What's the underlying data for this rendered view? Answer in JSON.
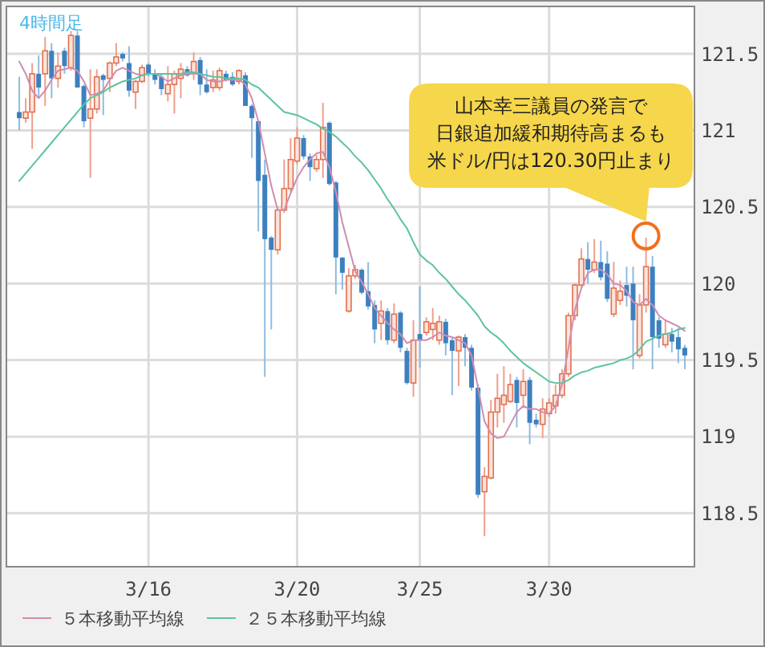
{
  "chart_data": {
    "type": "candlestick",
    "annotations": [
      "4時間足",
      "山本幸三議員の発言で",
      "日銀追加緩和期待高まるも",
      "米ドル/円は120.30円止まり"
    ],
    "categories": [
      null,
      null,
      null,
      null,
      null,
      null,
      null,
      null,
      null,
      null,
      null,
      null,
      null,
      null,
      null,
      null,
      null,
      null,
      null,
      null,
      "3/16",
      null,
      null,
      null,
      null,
      null,
      null,
      null,
      null,
      null,
      null,
      null,
      null,
      null,
      null,
      null,
      null,
      null,
      null,
      null,
      null,
      null,
      null,
      "3/20",
      null,
      null,
      null,
      null,
      null,
      null,
      null,
      null,
      null,
      null,
      null,
      null,
      null,
      null,
      null,
      null,
      null,
      null,
      "3/25",
      null,
      null,
      null,
      null,
      null,
      null,
      null,
      null,
      null,
      null,
      null,
      null,
      null,
      null,
      null,
      null,
      null,
      null,
      null,
      "3/30",
      null,
      null,
      null,
      null,
      null,
      null,
      null,
      null,
      null,
      null,
      null,
      null,
      null,
      null,
      null,
      null,
      null,
      null,
      null,
      null,
      null
    ],
    "ohlc": [
      [
        121.12,
        121.35,
        121.0,
        121.08
      ],
      [
        121.08,
        121.21,
        121.05,
        121.12
      ],
      [
        121.12,
        121.44,
        120.88,
        121.37
      ],
      [
        121.37,
        121.49,
        121.21,
        121.28
      ],
      [
        121.37,
        121.61,
        121.16,
        121.52
      ],
      [
        121.52,
        121.57,
        121.21,
        121.34
      ],
      [
        121.34,
        121.51,
        121.28,
        121.42
      ],
      [
        121.52,
        121.54,
        121.37,
        121.42
      ],
      [
        121.41,
        121.65,
        121.39,
        121.62
      ],
      [
        121.62,
        121.65,
        121.28,
        121.28
      ],
      [
        121.29,
        121.3,
        121.02,
        121.06
      ],
      [
        121.08,
        121.4,
        120.69,
        121.14
      ],
      [
        121.14,
        121.4,
        121.11,
        121.35
      ],
      [
        121.36,
        121.37,
        121.1,
        121.33
      ],
      [
        121.34,
        121.45,
        121.25,
        121.44
      ],
      [
        121.44,
        121.57,
        121.42,
        121.48
      ],
      [
        121.5,
        121.51,
        121.45,
        121.47
      ],
      [
        121.44,
        121.55,
        121.22,
        121.26
      ],
      [
        121.25,
        121.33,
        121.14,
        121.32
      ],
      [
        121.32,
        121.43,
        121.31,
        121.41
      ],
      [
        121.43,
        121.44,
        121.35,
        121.37
      ],
      [
        121.37,
        121.4,
        121.3,
        121.33
      ],
      [
        121.35,
        121.37,
        121.23,
        121.27
      ],
      [
        121.24,
        121.42,
        121.19,
        121.3
      ],
      [
        121.3,
        121.39,
        121.11,
        121.37
      ],
      [
        121.34,
        121.44,
        121.21,
        121.4
      ],
      [
        121.4,
        121.42,
        121.35,
        121.36
      ],
      [
        121.37,
        121.51,
        121.33,
        121.45
      ],
      [
        121.46,
        121.48,
        121.23,
        121.3
      ],
      [
        121.3,
        121.4,
        121.24,
        121.25
      ],
      [
        121.28,
        121.39,
        121.25,
        121.33
      ],
      [
        121.28,
        121.41,
        121.26,
        121.39
      ],
      [
        121.37,
        121.39,
        121.32,
        121.33
      ],
      [
        121.35,
        121.38,
        121.29,
        121.3
      ],
      [
        121.32,
        121.4,
        121.3,
        121.39
      ],
      [
        121.36,
        121.38,
        121.16,
        121.16
      ],
      [
        121.16,
        121.17,
        120.82,
        121.08
      ],
      [
        121.06,
        121.07,
        120.34,
        120.67
      ],
      [
        120.71,
        120.81,
        119.39,
        120.29
      ],
      [
        120.3,
        120.31,
        119.7,
        120.22
      ],
      [
        120.22,
        120.5,
        120.19,
        120.48
      ],
      [
        120.48,
        120.81,
        120.46,
        120.62
      ],
      [
        120.62,
        120.95,
        120.6,
        120.81
      ],
      [
        120.8,
        121.02,
        120.78,
        120.95
      ],
      [
        120.95,
        120.97,
        120.81,
        120.83
      ],
      [
        120.83,
        120.85,
        120.67,
        120.76
      ],
      [
        120.75,
        120.84,
        120.73,
        120.81
      ],
      [
        120.81,
        121.18,
        120.69,
        121.02
      ],
      [
        121.05,
        121.06,
        120.64,
        120.65
      ],
      [
        120.66,
        120.67,
        119.93,
        120.17
      ],
      [
        120.17,
        120.17,
        119.96,
        120.07
      ],
      [
        119.82,
        120.1,
        119.81,
        120.05
      ],
      [
        120.05,
        120.12,
        120.03,
        120.09
      ],
      [
        120.09,
        120.1,
        119.93,
        119.94
      ],
      [
        119.95,
        120.14,
        119.83,
        119.85
      ],
      [
        119.86,
        119.89,
        119.61,
        119.7
      ],
      [
        119.74,
        119.89,
        119.63,
        119.82
      ],
      [
        119.82,
        119.84,
        119.6,
        119.63
      ],
      [
        119.63,
        119.87,
        119.61,
        119.8
      ],
      [
        119.81,
        119.82,
        119.55,
        119.58
      ],
      [
        119.56,
        119.58,
        119.34,
        119.35
      ],
      [
        119.35,
        119.76,
        119.26,
        119.63
      ],
      [
        119.67,
        119.98,
        119.45,
        119.63
      ],
      [
        119.68,
        119.78,
        119.66,
        119.75
      ],
      [
        119.7,
        119.84,
        119.63,
        119.74
      ],
      [
        119.63,
        119.79,
        119.6,
        119.75
      ],
      [
        119.75,
        119.77,
        119.53,
        119.61
      ],
      [
        119.63,
        119.65,
        119.27,
        119.56
      ],
      [
        119.56,
        119.66,
        119.33,
        119.65
      ],
      [
        119.65,
        119.67,
        119.46,
        119.58
      ],
      [
        119.58,
        119.6,
        119.3,
        119.32
      ],
      [
        119.32,
        119.34,
        118.6,
        118.62
      ],
      [
        118.64,
        118.8,
        118.35,
        118.74
      ],
      [
        118.73,
        119.24,
        118.72,
        119.16
      ],
      [
        119.16,
        119.41,
        119.06,
        119.25
      ],
      [
        119.21,
        119.46,
        119.09,
        119.27
      ],
      [
        119.23,
        119.41,
        119.22,
        119.34
      ],
      [
        119.37,
        119.39,
        119.06,
        119.22
      ],
      [
        119.27,
        119.44,
        119.2,
        119.36
      ],
      [
        119.37,
        119.39,
        118.95,
        119.09
      ],
      [
        119.11,
        119.15,
        119.06,
        119.08
      ],
      [
        119.08,
        119.25,
        118.99,
        119.18
      ],
      [
        119.15,
        119.25,
        119.13,
        119.22
      ],
      [
        119.2,
        119.34,
        119.15,
        119.27
      ],
      [
        119.27,
        119.44,
        119.25,
        119.41
      ],
      [
        119.41,
        119.81,
        119.39,
        119.79
      ],
      [
        119.79,
        120.0,
        119.76,
        119.99
      ],
      [
        119.99,
        120.23,
        119.97,
        120.16
      ],
      [
        120.16,
        120.27,
        120.0,
        120.09
      ],
      [
        120.09,
        120.29,
        120.07,
        120.14
      ],
      [
        120.14,
        120.28,
        120.02,
        120.04
      ],
      [
        120.13,
        120.21,
        119.88,
        119.9
      ],
      [
        119.8,
        120.14,
        119.78,
        119.97
      ],
      [
        119.89,
        120.02,
        119.86,
        119.95
      ],
      [
        119.99,
        120.11,
        119.85,
        119.92
      ],
      [
        120.0,
        120.11,
        119.44,
        119.76
      ],
      [
        119.53,
        119.93,
        119.51,
        119.86
      ],
      [
        119.86,
        120.3,
        119.81,
        120.11
      ],
      [
        120.11,
        120.18,
        119.44,
        119.65
      ],
      [
        119.76,
        119.78,
        119.58,
        119.64
      ],
      [
        119.6,
        119.76,
        119.58,
        119.67
      ],
      [
        119.67,
        119.71,
        119.55,
        119.62
      ],
      [
        119.65,
        119.71,
        119.48,
        119.57
      ],
      [
        119.58,
        119.6,
        119.44,
        119.53
      ]
    ],
    "series": [
      {
        "type": "line",
        "name": "５本移動平均線",
        "color": "#d08cb0",
        "values": [
          121.45,
          121.37,
          121.26,
          121.21,
          121.26,
          121.33,
          121.39,
          121.4,
          121.41,
          121.39,
          121.32,
          121.23,
          121.24,
          121.26,
          121.33,
          121.39,
          121.41,
          121.39,
          121.37,
          121.36,
          121.37,
          121.37,
          121.35,
          121.32,
          121.34,
          121.36,
          121.37,
          121.37,
          121.37,
          121.33,
          121.32,
          121.32,
          121.33,
          121.33,
          121.33,
          121.3,
          121.21,
          121.06,
          120.85,
          120.64,
          120.48,
          120.48,
          120.59,
          120.69,
          120.76,
          120.81,
          120.85,
          120.86,
          120.76,
          120.6,
          120.4,
          120.24,
          120.08,
          120.01,
          119.93,
          119.84,
          119.79,
          119.74,
          119.7,
          119.67,
          119.61,
          119.63,
          119.63,
          119.63,
          119.65,
          119.68,
          119.66,
          119.65,
          119.63,
          119.61,
          119.53,
          119.32,
          119.1,
          119.02,
          118.99,
          119.0,
          119.08,
          119.16,
          119.2,
          119.18,
          119.18,
          119.16,
          119.15,
          119.2,
          119.34,
          119.58,
          119.83,
          119.97,
          120.07,
          120.09,
          120.09,
          120.06,
          120.0,
          119.99,
          119.95,
          119.88,
          119.86,
          119.9,
          119.86,
          119.79,
          119.76,
          119.74,
          119.72,
          119.69
        ]
      },
      {
        "type": "line",
        "name": "２５本移動平均線",
        "color": "#5cc49a",
        "values": [
          120.67,
          120.72,
          120.77,
          120.82,
          120.87,
          120.92,
          120.97,
          121.02,
          121.07,
          121.12,
          121.17,
          121.21,
          121.23,
          121.25,
          121.28,
          121.3,
          121.32,
          121.33,
          121.34,
          121.36,
          121.37,
          121.37,
          121.37,
          121.37,
          121.37,
          121.37,
          121.38,
          121.38,
          121.37,
          121.36,
          121.35,
          121.35,
          121.34,
          121.34,
          121.34,
          121.33,
          121.3,
          121.28,
          121.24,
          121.2,
          121.16,
          121.12,
          121.11,
          121.1,
          121.08,
          121.06,
          121.04,
          121.01,
          120.99,
          120.96,
          120.92,
          120.88,
          120.83,
          120.79,
          120.74,
          120.68,
          120.62,
          120.55,
          120.49,
          120.42,
          120.36,
          120.27,
          120.19,
          120.15,
          120.12,
          120.07,
          120.03,
          119.98,
          119.93,
          119.89,
          119.84,
          119.79,
          119.72,
          119.68,
          119.65,
          119.61,
          119.56,
          119.52,
          119.48,
          119.45,
          119.42,
          119.39,
          119.36,
          119.35,
          119.35,
          119.37,
          119.4,
          119.42,
          119.43,
          119.45,
          119.46,
          119.47,
          119.48,
          119.5,
          119.51,
          119.53,
          119.57,
          119.62,
          119.64,
          119.66,
          119.67,
          119.68,
          119.7,
          119.71
        ]
      }
    ],
    "ylim": [
      118.15,
      121.81
    ],
    "yticks": [
      118.5,
      119,
      119.5,
      120,
      120.5,
      121,
      121.5
    ],
    "grid": true,
    "legend": "bottom"
  }
}
